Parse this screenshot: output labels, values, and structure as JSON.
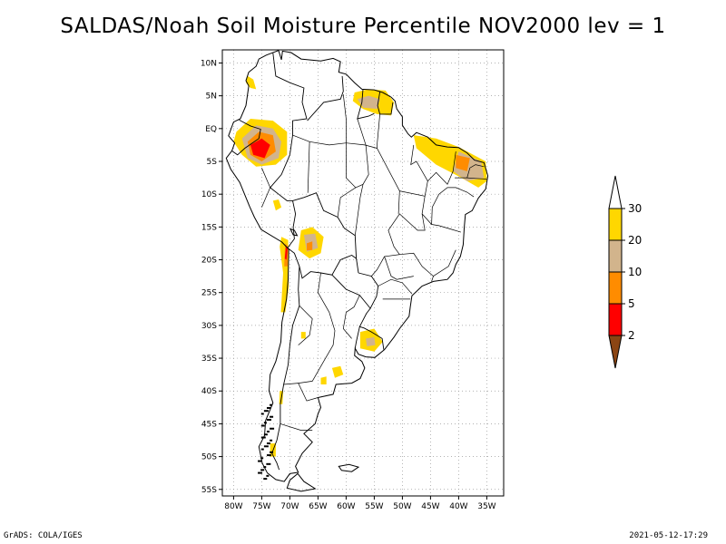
{
  "title": "SALDAS/Noah Soil Moisture Percentile NOV2000 lev = 1",
  "footer": {
    "left": "GrADS: COLA/IGES",
    "right": "2021-05-12-17:29"
  },
  "map": {
    "lon_range": [
      -82,
      -32
    ],
    "lat_range": [
      -56,
      12
    ],
    "lat_ticks": [
      {
        "value": 10,
        "label": "10N"
      },
      {
        "value": 5,
        "label": "5N"
      },
      {
        "value": 0,
        "label": "EQ"
      },
      {
        "value": -5,
        "label": "5S"
      },
      {
        "value": -10,
        "label": "10S"
      },
      {
        "value": -15,
        "label": "15S"
      },
      {
        "value": -20,
        "label": "20S"
      },
      {
        "value": -25,
        "label": "25S"
      },
      {
        "value": -30,
        "label": "30S"
      },
      {
        "value": -35,
        "label": "35S"
      },
      {
        "value": -40,
        "label": "40S"
      },
      {
        "value": -45,
        "label": "45S"
      },
      {
        "value": -50,
        "label": "50S"
      },
      {
        "value": -55,
        "label": "55S"
      }
    ],
    "lon_ticks": [
      {
        "value": -80,
        "label": "80W"
      },
      {
        "value": -75,
        "label": "75W"
      },
      {
        "value": -70,
        "label": "70W"
      },
      {
        "value": -65,
        "label": "65W"
      },
      {
        "value": -60,
        "label": "60W"
      },
      {
        "value": -55,
        "label": "55W"
      },
      {
        "value": -50,
        "label": "50W"
      },
      {
        "value": -45,
        "label": "45W"
      },
      {
        "value": -40,
        "label": "40W"
      },
      {
        "value": -35,
        "label": "35W"
      }
    ]
  },
  "colorbar": {
    "bins": [
      {
        "label": "30",
        "color": "#ffd700"
      },
      {
        "label": "20",
        "color": "#d2b48c"
      },
      {
        "label": "10",
        "color": "#ff8c00"
      },
      {
        "label": "5",
        "color": "#ff0000"
      },
      {
        "label": "2",
        "color": "#8b4513"
      }
    ],
    "top_color": "#ffffff"
  },
  "colors": {
    "yellow": "#ffd700",
    "tan": "#d2b48c",
    "orange": "#ff8c00",
    "red": "#ff0000",
    "brown": "#8b4513"
  }
}
